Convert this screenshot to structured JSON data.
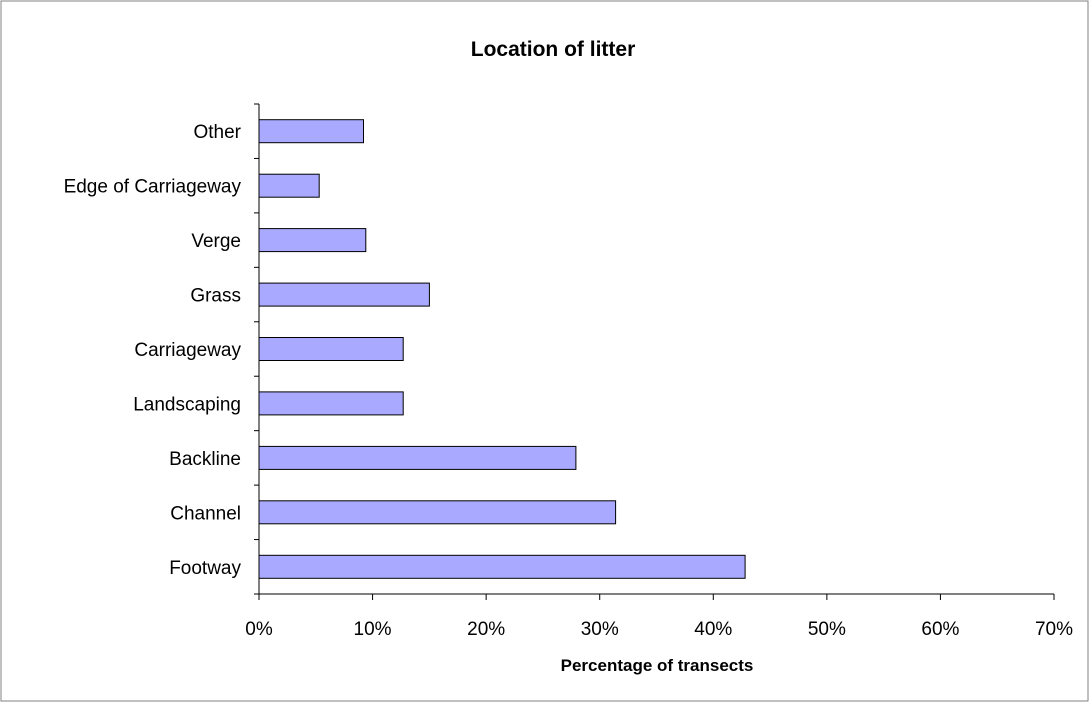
{
  "chart_data": {
    "type": "bar",
    "orientation": "horizontal",
    "title": "Location of litter",
    "xlabel": "Percentage of transects",
    "ylabel": "",
    "xlim": [
      0,
      70
    ],
    "x_ticks": [
      "0%",
      "10%",
      "20%",
      "30%",
      "40%",
      "50%",
      "60%",
      "70%"
    ],
    "categories": [
      "Footway",
      "Channel",
      "Backline",
      "Landscaping",
      "Carriageway",
      "Grass",
      "Verge",
      "Edge of Carriageway",
      "Other"
    ],
    "values": [
      42.8,
      31.4,
      27.9,
      12.7,
      12.7,
      15.0,
      9.4,
      5.3,
      9.2
    ],
    "unit": "%",
    "grid": false,
    "legend": "none",
    "colors": {
      "bar_fill": "#a9aaff",
      "bar_stroke": "#000000",
      "frame": "#808080",
      "axis": "#000000"
    }
  }
}
